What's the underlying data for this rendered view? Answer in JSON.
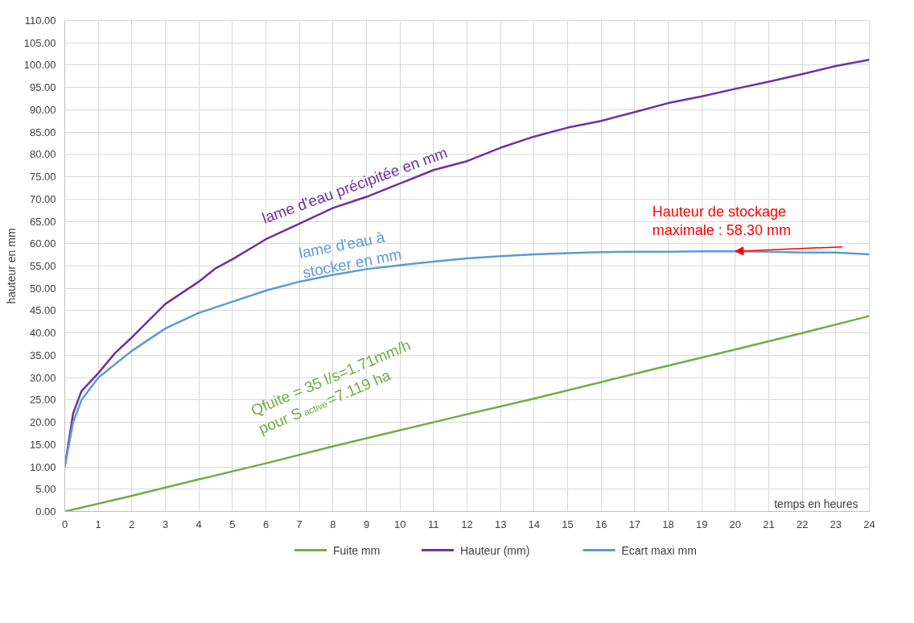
{
  "chart_data": {
    "type": "line",
    "xlabel": "temps en heures",
    "ylabel": "hauteur en mm",
    "xlim": [
      0,
      24
    ],
    "xticks": [
      0,
      1,
      2,
      3,
      4,
      5,
      6,
      7,
      8,
      9,
      10,
      11,
      12,
      13,
      14,
      15,
      16,
      17,
      18,
      19,
      20,
      21,
      22,
      23,
      24
    ],
    "ylim": [
      0,
      110
    ],
    "yticks": [
      {
        "value": 0,
        "label": "0.00"
      },
      {
        "value": 5,
        "label": "5.00"
      },
      {
        "value": 10,
        "label": "10.00"
      },
      {
        "value": 15,
        "label": "15.00"
      },
      {
        "value": 20,
        "label": "20.00"
      },
      {
        "value": 25,
        "label": "25.00"
      },
      {
        "value": 30,
        "label": "30.00"
      },
      {
        "value": 35,
        "label": "35.00"
      },
      {
        "value": 40,
        "label": "40.00"
      },
      {
        "value": 45,
        "label": "45.00"
      },
      {
        "value": 50,
        "label": "50.00"
      },
      {
        "value": 55,
        "label": "55.00"
      },
      {
        "value": 60,
        "label": "60.00"
      },
      {
        "value": 65,
        "label": "65.00"
      },
      {
        "value": 70,
        "label": "70.00"
      },
      {
        "value": 75,
        "label": "75.00"
      },
      {
        "value": 80,
        "label": "80.00"
      },
      {
        "value": 85,
        "label": "85.00"
      },
      {
        "value": 90,
        "label": "90.00"
      },
      {
        "value": 95,
        "label": "95.00"
      },
      {
        "value": 100,
        "label": "100.00"
      },
      {
        "value": 105,
        "label": "105.00"
      },
      {
        "value": 110,
        "label": "110.00"
      }
    ],
    "grid": true,
    "legend": "bottom",
    "marker": "none",
    "line_style": "solid",
    "series": [
      {
        "name": "Fuite mm",
        "color": "#70ad47",
        "x": [
          0,
          2,
          4,
          6,
          8,
          10,
          12,
          14,
          16,
          18,
          20,
          22,
          24
        ],
        "values": [
          0,
          3.5,
          7.2,
          10.8,
          14.6,
          18.2,
          21.8,
          25.3,
          29,
          32.7,
          36.3,
          40,
          43.8
        ]
      },
      {
        "name": "Hauteur  (mm)",
        "color": "#7030a0",
        "x": [
          0,
          0.25,
          0.5,
          1,
          1.5,
          2,
          3,
          4,
          4.5,
          5,
          6,
          7,
          8,
          9,
          10,
          11,
          12,
          13,
          14,
          15,
          16,
          17,
          18,
          19,
          20,
          21,
          22,
          23,
          24
        ],
        "values": [
          10,
          22,
          27,
          31,
          35.5,
          39,
          46.5,
          51.5,
          54.5,
          56.5,
          61,
          64.5,
          68,
          70.5,
          73.5,
          76.5,
          78.5,
          81.5,
          84,
          86,
          87.5,
          89.5,
          91.5,
          93,
          94.7,
          96.3,
          98,
          99.8,
          101.2
        ]
      },
      {
        "name": "Ecart maxi mm",
        "color": "#5b9bd5",
        "x": [
          0,
          0.25,
          0.5,
          1,
          1.5,
          2,
          3,
          4,
          5,
          6,
          7,
          8,
          9,
          10,
          11,
          12,
          13,
          14,
          15,
          16,
          17,
          18,
          19,
          20,
          21,
          22,
          23,
          24
        ],
        "values": [
          10,
          20,
          25,
          30,
          33,
          36,
          41,
          44.5,
          47,
          49.5,
          51.5,
          53,
          54.3,
          55.2,
          56,
          56.7,
          57.2,
          57.6,
          57.9,
          58.1,
          58.2,
          58.2,
          58.3,
          58.3,
          58.2,
          58,
          58,
          57.6
        ]
      }
    ],
    "annotations": [
      "lame d'eau précipitée en mm",
      "lame d'eau à\nstocker en mm",
      "Qfuite = 35 l/s=1.71mm/h\npour S$_{active}$ =7.119 ha",
      {
        "text": "Hauteur de stockage\nmaximale : 58.30 mm",
        "x": 20,
        "y": 58.3
      }
    ]
  }
}
